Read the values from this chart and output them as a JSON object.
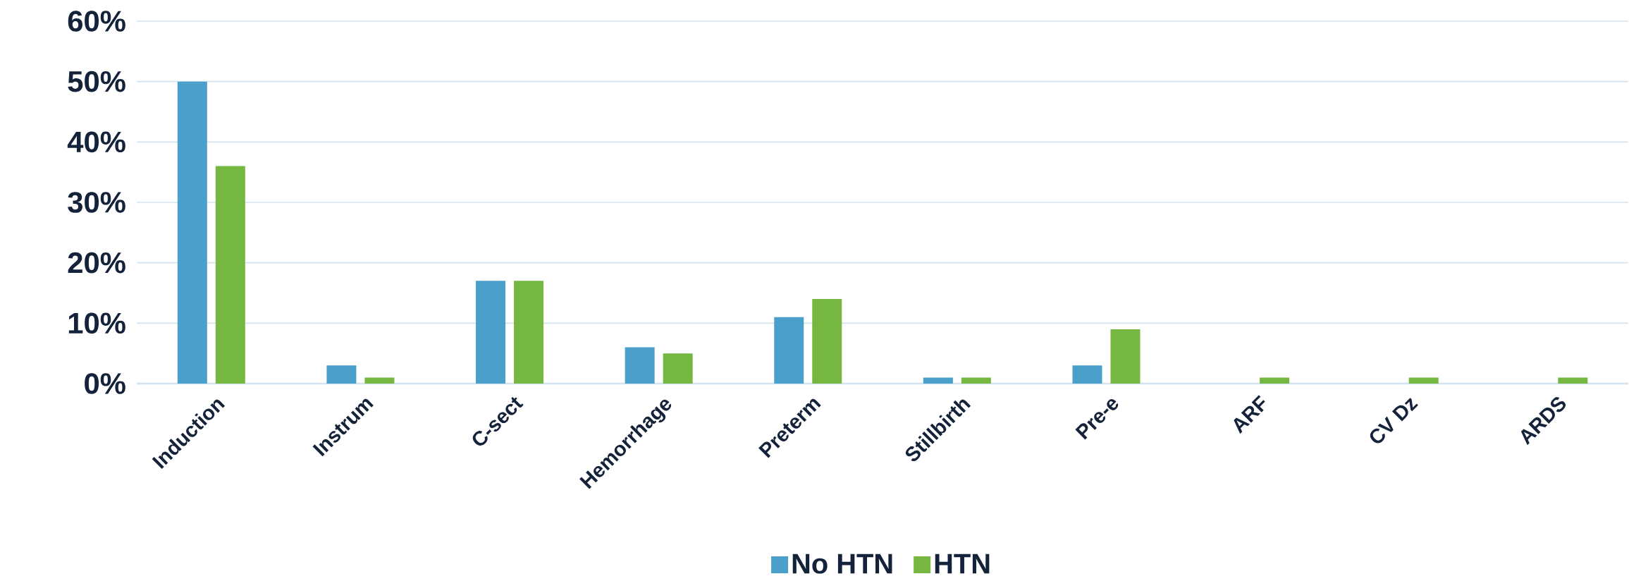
{
  "chart_data": {
    "type": "bar",
    "categories": [
      "Induction",
      "Instrum",
      "C-sect",
      "Hemorrhage",
      "Preterm",
      "Stillbirth",
      "Pre-e",
      "ARF",
      "CV Dz",
      "ARDS"
    ],
    "series": [
      {
        "name": "No HTN",
        "color": "#4a9fcb",
        "values": [
          50,
          3,
          17,
          6,
          11,
          1,
          3,
          0,
          0,
          0
        ]
      },
      {
        "name": "HTN",
        "color": "#76b742",
        "values": [
          36,
          1,
          17,
          5,
          14,
          1,
          9,
          1,
          1,
          1
        ]
      }
    ],
    "ylim": [
      0,
      60
    ],
    "yticks": [
      {
        "value": 0,
        "label": "0%"
      },
      {
        "value": 10,
        "label": "10%"
      },
      {
        "value": 20,
        "label": "20%"
      },
      {
        "value": 30,
        "label": "30%"
      },
      {
        "value": 40,
        "label": "40%"
      },
      {
        "value": 50,
        "label": "50%"
      },
      {
        "value": 60,
        "label": "60%"
      }
    ],
    "grid": "y",
    "legend": "bottom"
  }
}
